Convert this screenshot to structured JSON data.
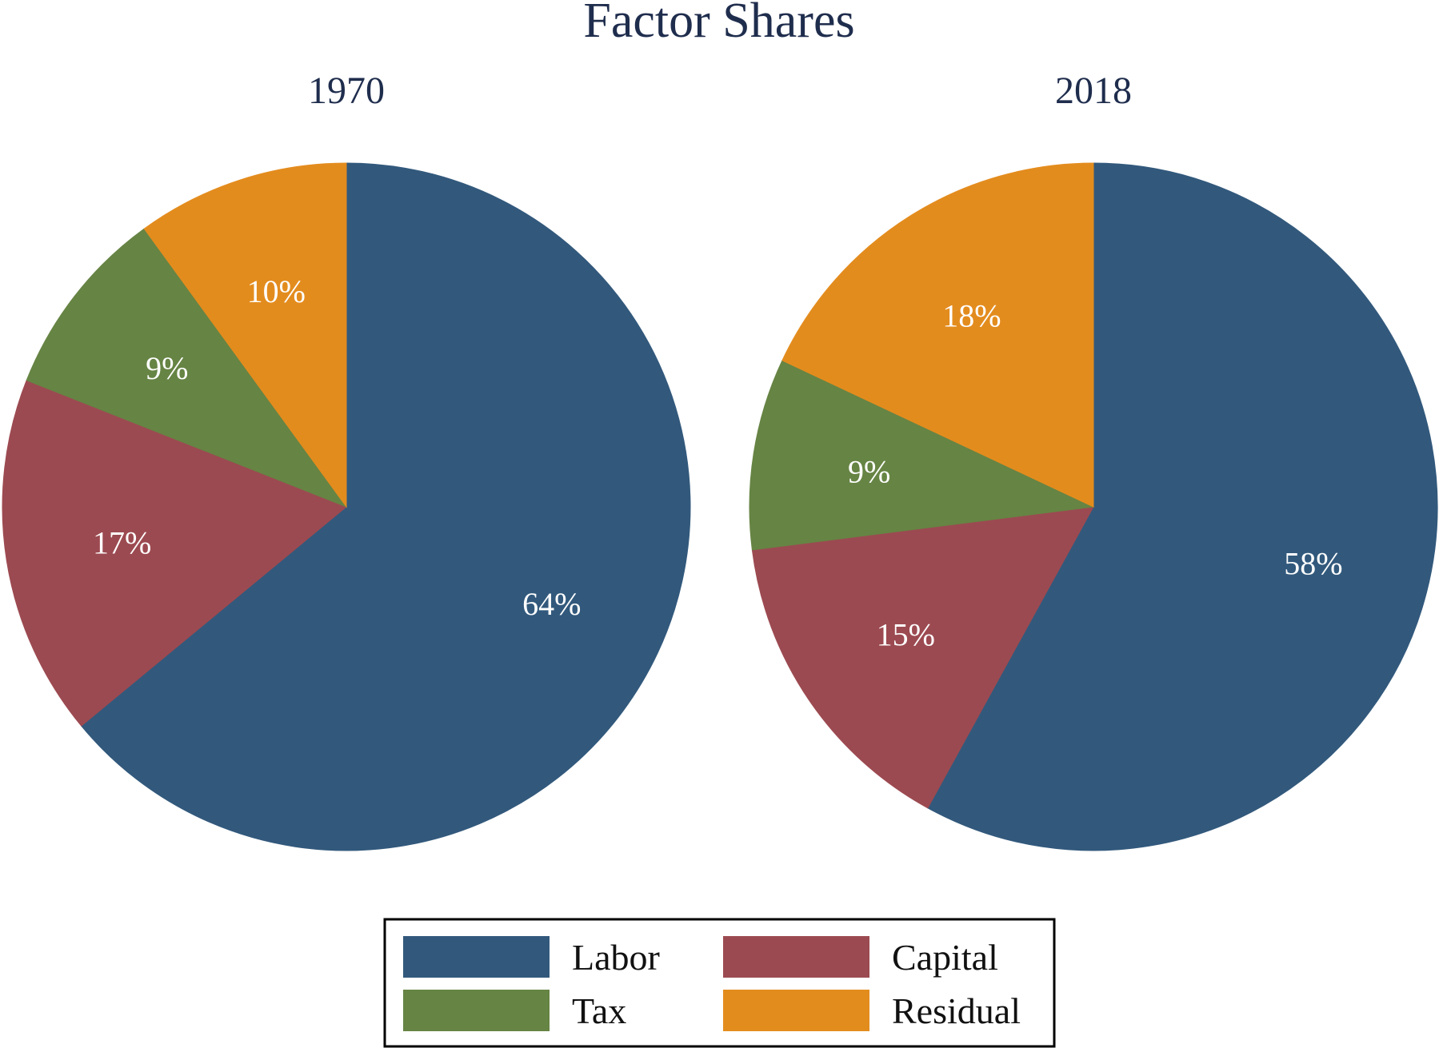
{
  "chart_data": {
    "type": "pie",
    "title": "Factor Shares",
    "categories": [
      "Labor",
      "Capital",
      "Tax",
      "Residual"
    ],
    "colors": {
      "Labor": "#32597c",
      "Capital": "#9c4a51",
      "Tax": "#668444",
      "Residual": "#e38c1e"
    },
    "pies": [
      {
        "title": "1970",
        "slices": [
          {
            "category": "Labor",
            "value": 64,
            "label": "64%"
          },
          {
            "category": "Capital",
            "value": 17,
            "label": "17%"
          },
          {
            "category": "Tax",
            "value": 9,
            "label": "9%"
          },
          {
            "category": "Residual",
            "value": 10,
            "label": "10%"
          }
        ]
      },
      {
        "title": "2018",
        "slices": [
          {
            "category": "Labor",
            "value": 58,
            "label": "58%"
          },
          {
            "category": "Capital",
            "value": 15,
            "label": "15%"
          },
          {
            "category": "Tax",
            "value": 9,
            "label": "9%"
          },
          {
            "category": "Residual",
            "value": 18,
            "label": "18%"
          }
        ]
      }
    ],
    "legend": {
      "placement": "bottom-center",
      "items": [
        "Labor",
        "Capital",
        "Tax",
        "Residual"
      ]
    }
  }
}
